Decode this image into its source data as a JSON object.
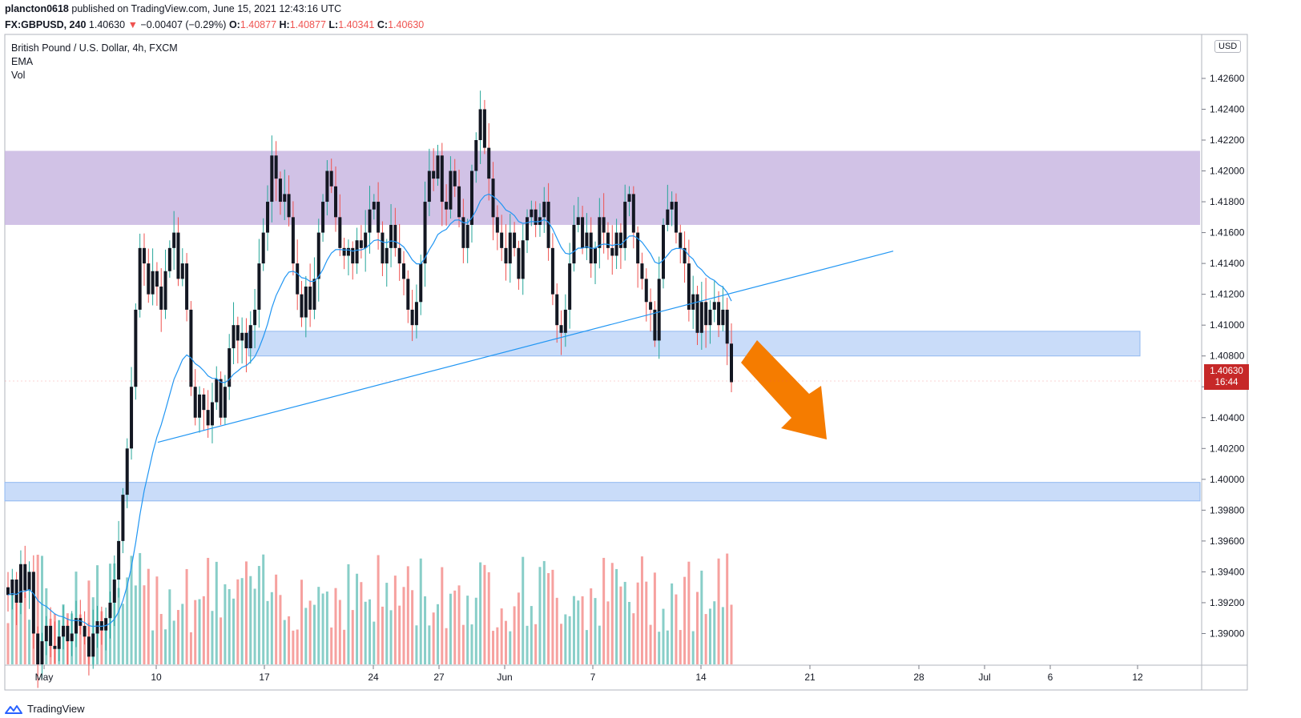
{
  "header": {
    "publisher": "plancton0618",
    "published_text": "published on TradingView.com, June 15, 2021 12:43:16 UTC",
    "symbol": "FX:GBPUSD, 240",
    "last": "1.40630",
    "change_arrow": "▼",
    "change": "−0.00407 (−0.29%)",
    "o_label": "O:",
    "o": "1.40877",
    "h_label": "H:",
    "h": "1.40877",
    "l_label": "L:",
    "l": "1.40341",
    "c_label": "C:",
    "c": "1.40630"
  },
  "legend": {
    "title": "British Pound / U.S. Dollar, 4h, FXCM",
    "ema": "EMA",
    "vol": "Vol"
  },
  "axis": {
    "currency": "USD",
    "last_price": "1.40630",
    "countdown": "16:44"
  },
  "footer": {
    "brand": "TradingView",
    "icon": "tradingview-logo-icon"
  },
  "colors": {
    "up": "#26a69a",
    "down": "#ef5350",
    "candle_body": "#131722",
    "ema": "#2196f3",
    "resistance_zone": "#c5b3e0",
    "support_zone": "#bbd3f7",
    "arrow": "#f57c00",
    "price_tag": "#c62828"
  },
  "chart_data": {
    "type": "candlestick",
    "title": "British Pound / U.S. Dollar, 4h, FXCM",
    "y_ticks": [
      "1.42600",
      "1.42400",
      "1.42200",
      "1.42000",
      "1.41800",
      "1.41600",
      "1.41400",
      "1.41200",
      "1.41000",
      "1.40800",
      "1.40600",
      "1.40400",
      "1.40200",
      "1.40000",
      "1.39800",
      "1.39600",
      "1.39400",
      "1.39200",
      "1.39000"
    ],
    "x_ticks": [
      "May",
      "10",
      "17",
      "24",
      "27",
      "Jun",
      "7",
      "14",
      "21",
      "28",
      "Jul",
      "6",
      "12"
    ],
    "ylim": [
      1.388,
      1.4288
    ],
    "zones": [
      {
        "name": "resistance-zone",
        "from": 1.4165,
        "to": 1.4213
      },
      {
        "name": "support-zone-upper",
        "from": 1.408,
        "to": 1.4096
      },
      {
        "name": "support-zone-lower",
        "from": 1.3986,
        "to": 1.3998
      }
    ],
    "trendline": {
      "from": 1.4024,
      "to": 1.4148
    },
    "closes": [
      1.3925,
      1.3935,
      1.392,
      1.3945,
      1.3928,
      1.394,
      1.39,
      1.388,
      1.3895,
      1.3905,
      1.3892,
      1.389,
      1.3898,
      1.3905,
      1.3895,
      1.39,
      1.391,
      1.3905,
      1.3898,
      1.3885,
      1.39,
      1.3908,
      1.3902,
      1.391,
      1.392,
      1.3935,
      1.396,
      1.399,
      1.402,
      1.406,
      1.411,
      1.415,
      1.414,
      1.412,
      1.4135,
      1.4125,
      1.411,
      1.4135,
      1.415,
      1.416,
      1.413,
      1.414,
      1.411,
      1.406,
      1.404,
      1.4055,
      1.4045,
      1.4035,
      1.405,
      1.4065,
      1.404,
      1.406,
      1.4085,
      1.41,
      1.409,
      1.4095,
      1.4085,
      1.41,
      1.411,
      1.414,
      1.416,
      1.418,
      1.421,
      1.4195,
      1.418,
      1.4185,
      1.417,
      1.414,
      1.412,
      1.4105,
      1.4125,
      1.411,
      1.413,
      1.416,
      1.418,
      1.42,
      1.419,
      1.417,
      1.415,
      1.4145,
      1.415,
      1.414,
      1.4155,
      1.415,
      1.416,
      1.4175,
      1.418,
      1.416,
      1.414,
      1.415,
      1.4165,
      1.415,
      1.414,
      1.413,
      1.411,
      1.41,
      1.4115,
      1.414,
      1.418,
      1.42,
      1.4195,
      1.421,
      1.418,
      1.4175,
      1.42,
      1.419,
      1.417,
      1.415,
      1.4165,
      1.42,
      1.422,
      1.424,
      1.4215,
      1.4195,
      1.417,
      1.416,
      1.415,
      1.414,
      1.416,
      1.415,
      1.413,
      1.4155,
      1.417,
      1.4175,
      1.4165,
      1.417,
      1.418,
      1.415,
      1.412,
      1.41,
      1.4095,
      1.411,
      1.414,
      1.4165,
      1.417,
      1.415,
      1.416,
      1.414,
      1.415,
      1.417,
      1.416,
      1.415,
      1.4145,
      1.416,
      1.415,
      1.418,
      1.4185,
      1.416,
      1.414,
      1.413,
      1.4115,
      1.411,
      1.409,
      1.413,
      1.4165,
      1.4175,
      1.418,
      1.416,
      1.415,
      1.414,
      1.411,
      1.412,
      1.4095,
      1.4115,
      1.41,
      1.411,
      1.4115,
      1.41,
      1.411,
      1.4088,
      1.4063
    ],
    "volume_note": "Volume histogram shown beneath price, colored by candle direction"
  }
}
